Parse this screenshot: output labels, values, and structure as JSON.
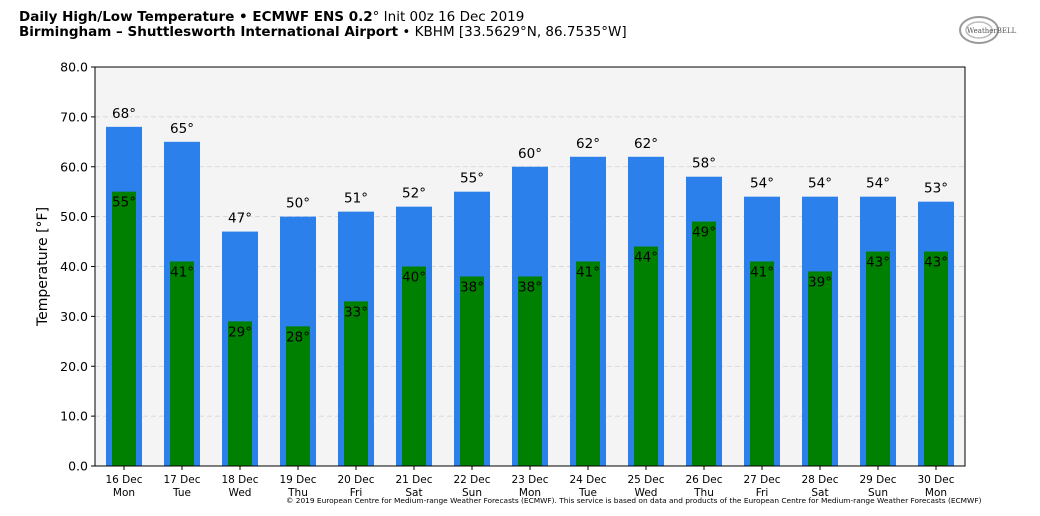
{
  "header": {
    "line1_bold": "Daily High/Low Temperature • ECMWF ENS 0.2",
    "line1_deg": "°",
    "line1_rest": " Init 00z 16 Dec 2019",
    "line2_bold": "Birmingham – Shuttlesworth International Airport",
    "line2_rest": " • KBHM [33.5629°N, 86.7535°W]"
  },
  "logo_text": "WeatherBELL",
  "footer": "© 2019 European Centre for Medium-range Weather Forecasts (ECMWF). This service is based on data and products of the European Centre for Medium-range Weather Forecasts (ECMWF)",
  "colors": {
    "high": "#2b80eb",
    "low": "#008000",
    "plot_bg": "#f4f4f4",
    "grid": "#d0d0d0"
  },
  "chart_data": {
    "type": "bar",
    "title": "Daily High/Low Temperature • ECMWF ENS 0.2° Init 00z 16 Dec 2019",
    "xlabel": "",
    "ylabel": "Temperature [°F]",
    "ylim": [
      0,
      80
    ],
    "yticks": [
      "0.0",
      "10.0",
      "20.0",
      "30.0",
      "40.0",
      "50.0",
      "60.0",
      "70.0",
      "80.0"
    ],
    "grid": true,
    "categories": [
      {
        "date": "16 Dec",
        "day": "Mon"
      },
      {
        "date": "17 Dec",
        "day": "Tue"
      },
      {
        "date": "18 Dec",
        "day": "Wed"
      },
      {
        "date": "19 Dec",
        "day": "Thu"
      },
      {
        "date": "20 Dec",
        "day": "Fri"
      },
      {
        "date": "21 Dec",
        "day": "Sat"
      },
      {
        "date": "22 Dec",
        "day": "Sun"
      },
      {
        "date": "23 Dec",
        "day": "Mon"
      },
      {
        "date": "24 Dec",
        "day": "Tue"
      },
      {
        "date": "25 Dec",
        "day": "Wed"
      },
      {
        "date": "26 Dec",
        "day": "Thu"
      },
      {
        "date": "27 Dec",
        "day": "Fri"
      },
      {
        "date": "28 Dec",
        "day": "Sat"
      },
      {
        "date": "29 Dec",
        "day": "Sun"
      },
      {
        "date": "30 Dec",
        "day": "Mon"
      }
    ],
    "series": [
      {
        "key": "high",
        "values": [
          68,
          65,
          47,
          50,
          51,
          52,
          55,
          60,
          62,
          62,
          58,
          54,
          54,
          54,
          53
        ]
      },
      {
        "key": "low",
        "values": [
          55,
          41,
          29,
          28,
          33,
          40,
          38,
          38,
          41,
          44,
          49,
          41,
          39,
          43,
          43
        ]
      }
    ],
    "value_suffix": "°"
  }
}
